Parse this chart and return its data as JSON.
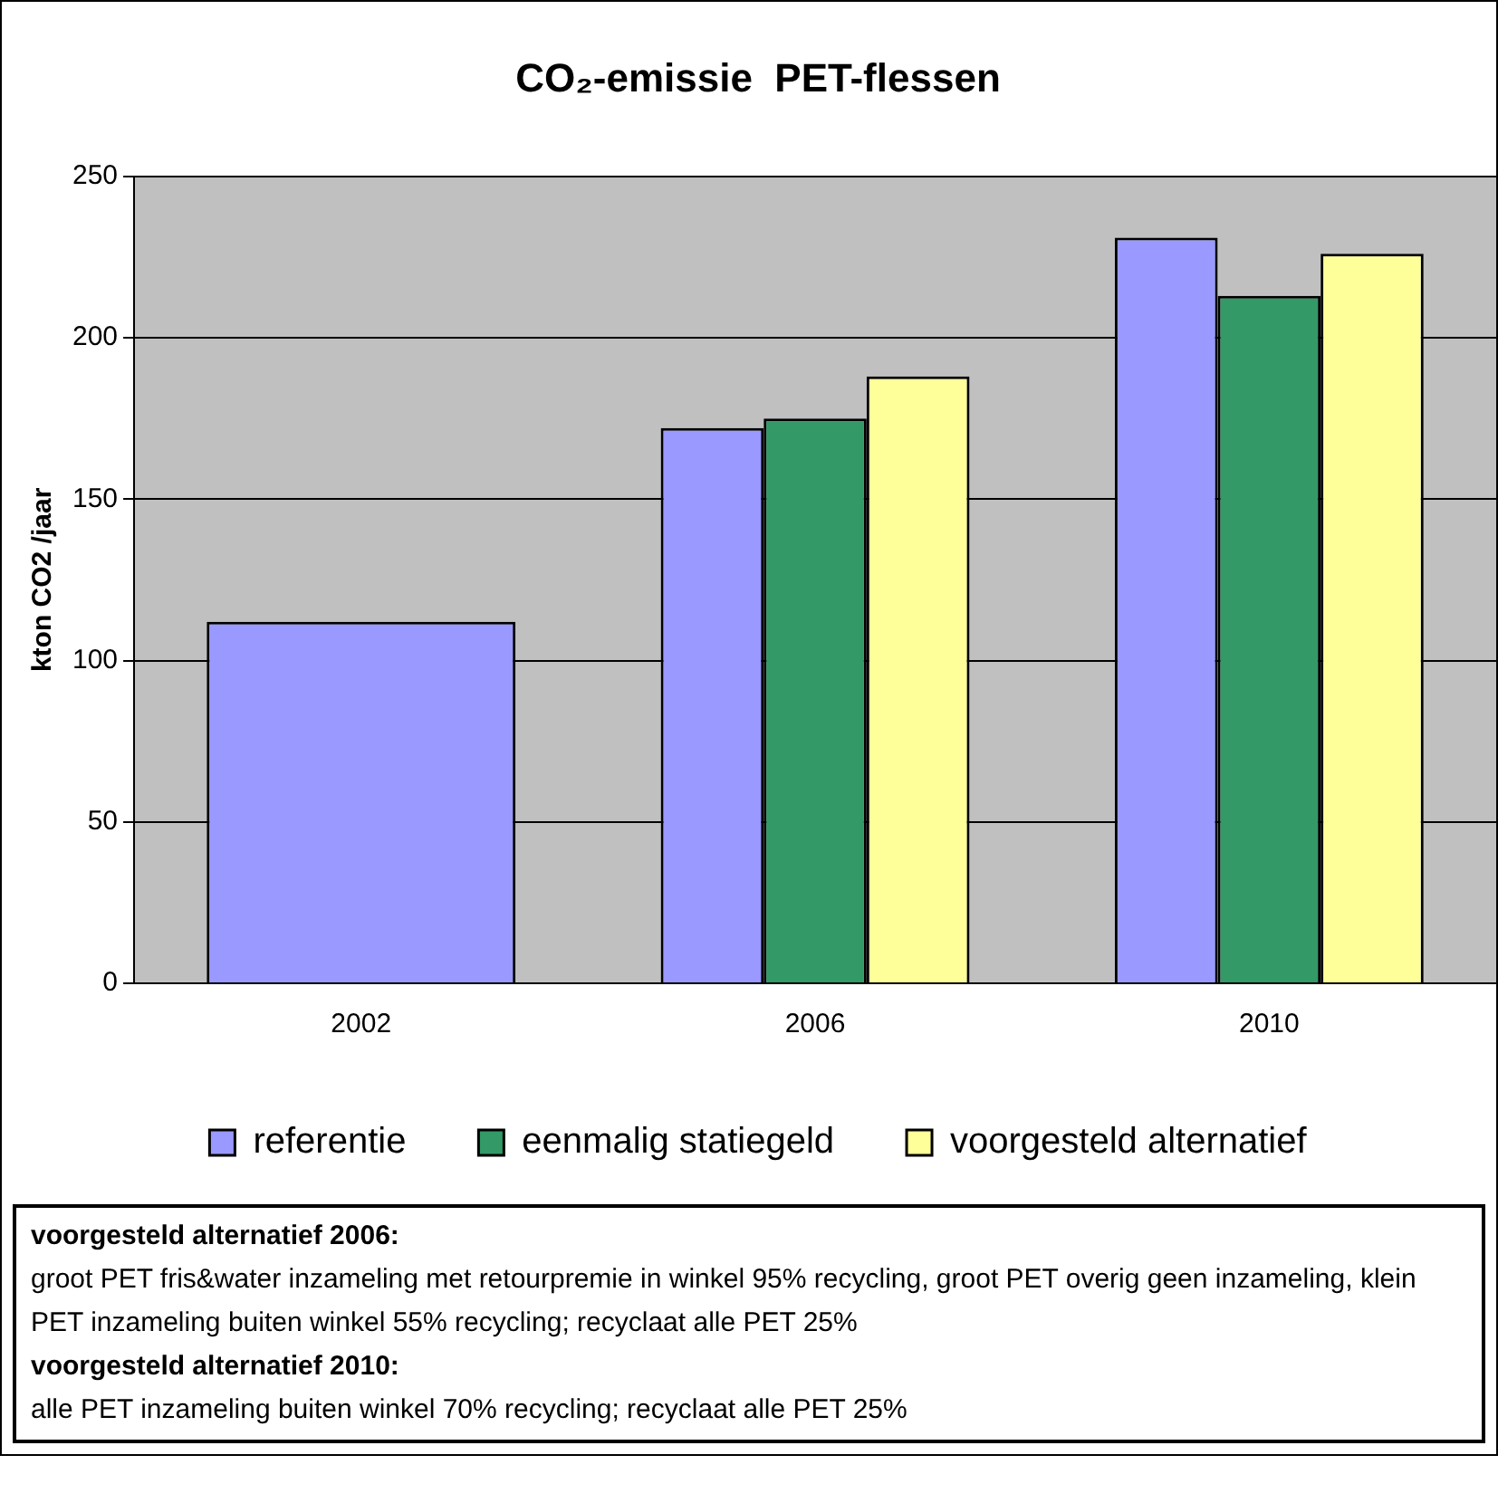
{
  "chart_data": {
    "type": "bar",
    "title": "CO₂-emissie  PET-flessen",
    "ylabel": "kton CO2 /jaar",
    "categories": [
      "2002",
      "2006",
      "2010"
    ],
    "series": [
      {
        "name": "referentie",
        "color": "#9999ff",
        "values": [
          112,
          172,
          231
        ]
      },
      {
        "name": "eenmalig statiegeld",
        "color": "#339966",
        "values": [
          null,
          175,
          213
        ]
      },
      {
        "name": "voorgesteld alternatief",
        "color": "#ffff99",
        "values": [
          null,
          188,
          226
        ]
      }
    ],
    "ylim": [
      0,
      250
    ],
    "yticks": [
      0,
      50,
      100,
      150,
      200,
      250
    ],
    "grid": "y",
    "legend": "bottom",
    "annotations": [
      "voorgesteld alternatief 2006:",
      "groot PET fris&water inzameling met retourpremie in winkel 95% recycling, groot PET overig geen inzameling, klein PET inzameling buiten winkel 55% recycling; recyclaat alle PET 25%",
      "voorgesteld alternatief 2010:",
      "alle PET inzameling buiten winkel 70% recycling; recyclaat alle PET 25%"
    ]
  }
}
